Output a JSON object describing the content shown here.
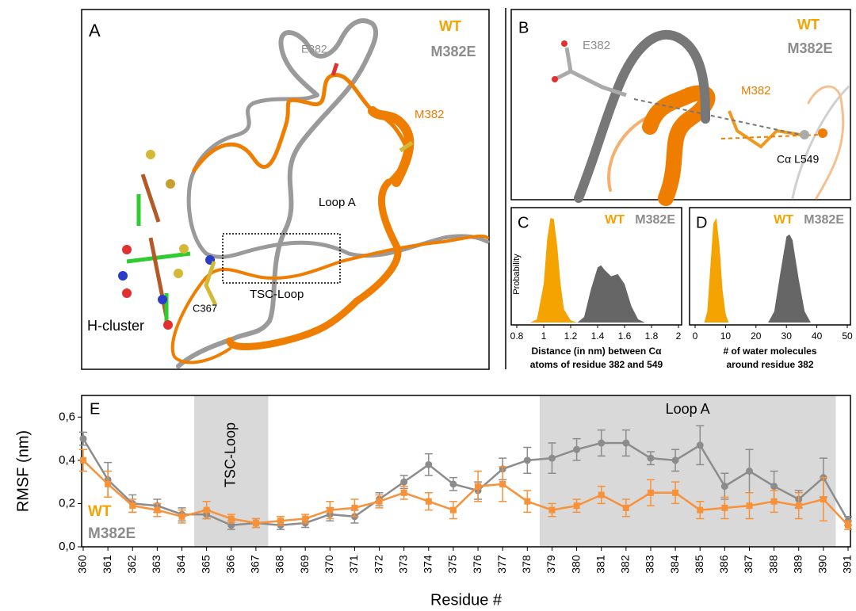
{
  "panels": {
    "A": {
      "label": "A",
      "legend": [
        "WT",
        "M382E"
      ],
      "labels": [
        "E382",
        "M382",
        "Loop A",
        "TSC-Loop",
        "C367",
        "H-cluster"
      ]
    },
    "B": {
      "label": "B",
      "legend": [
        "WT",
        "M382E"
      ],
      "labels": [
        "E382",
        "M382",
        "Cα L549"
      ]
    }
  },
  "chart_data": [
    {
      "type": "area",
      "panel_label": "C",
      "ylabel": "Probability",
      "xlabel": [
        "Distance (in nm) between Cα",
        "atoms of residue 382 and 549"
      ],
      "xlim": [
        0.8,
        2
      ],
      "xticks": [
        0.8,
        1,
        1.2,
        1.4,
        1.6,
        1.8,
        2
      ],
      "ylim": [
        0,
        1
      ],
      "series": [
        {
          "name": "WT",
          "color": "#f5a300",
          "x": [
            0.9,
            0.95,
            1.0,
            1.025,
            1.05,
            1.075,
            1.1,
            1.125,
            1.15,
            1.2,
            1.25
          ],
          "values": [
            0,
            0.03,
            0.35,
            0.75,
            0.95,
            0.94,
            0.7,
            0.35,
            0.12,
            0.02,
            0
          ]
        },
        {
          "name": "M382E",
          "color": "#666666",
          "x": [
            1.25,
            1.3,
            1.35,
            1.4,
            1.425,
            1.45,
            1.5,
            1.55,
            1.6,
            1.65,
            1.7,
            1.75
          ],
          "values": [
            0,
            0.05,
            0.3,
            0.5,
            0.52,
            0.48,
            0.42,
            0.44,
            0.35,
            0.15,
            0.03,
            0
          ]
        }
      ]
    },
    {
      "type": "area",
      "panel_label": "D",
      "xlabel": [
        "# of water molecules",
        "around residue 382"
      ],
      "xlim": [
        0,
        50
      ],
      "xticks": [
        0,
        10,
        20,
        30,
        40,
        50
      ],
      "ylim": [
        0,
        1
      ],
      "series": [
        {
          "name": "WT",
          "color": "#f5a300",
          "x": [
            3,
            4,
            5,
            6,
            7,
            8,
            9,
            10,
            11
          ],
          "values": [
            0,
            0.1,
            0.5,
            0.9,
            0.95,
            0.7,
            0.3,
            0.08,
            0
          ]
        },
        {
          "name": "M382E",
          "color": "#666666",
          "x": [
            24,
            26,
            28,
            30,
            31,
            32,
            34,
            36,
            38
          ],
          "values": [
            0,
            0.1,
            0.45,
            0.78,
            0.8,
            0.75,
            0.4,
            0.1,
            0
          ]
        }
      ]
    },
    {
      "type": "line",
      "panel_label": "E",
      "ylabel": "RMSF (nm)",
      "xlabel": "Residue #",
      "x": [
        360,
        361,
        362,
        363,
        364,
        365,
        366,
        367,
        368,
        369,
        370,
        371,
        372,
        373,
        374,
        375,
        376,
        377,
        378,
        379,
        380,
        381,
        382,
        383,
        384,
        385,
        386,
        387,
        388,
        389,
        390,
        391
      ],
      "xlim": [
        360,
        391
      ],
      "xticks": [
        360,
        361,
        362,
        363,
        364,
        365,
        366,
        367,
        368,
        369,
        370,
        371,
        372,
        373,
        374,
        375,
        376,
        377,
        378,
        379,
        380,
        381,
        382,
        383,
        384,
        385,
        386,
        387,
        388,
        389,
        390,
        391
      ],
      "ylim": [
        0,
        0.7
      ],
      "yticks": [
        {
          "value": 0,
          "label": "0,0"
        },
        {
          "value": 0.2,
          "label": "0,2"
        },
        {
          "value": 0.4,
          "label": "0,4"
        },
        {
          "value": 0.6,
          "label": "0,6"
        }
      ],
      "regions": [
        {
          "label": "TSC-Loop",
          "range": [
            364.5,
            367.5
          ]
        },
        {
          "label": "Loop A",
          "range": [
            378.5,
            390.5
          ]
        }
      ],
      "series": [
        {
          "name": "M382E",
          "color": "#8c8c8c",
          "marker": "circle",
          "values": [
            0.5,
            0.31,
            0.2,
            0.19,
            0.15,
            0.15,
            0.1,
            0.11,
            0.1,
            0.11,
            0.15,
            0.14,
            0.22,
            0.3,
            0.38,
            0.29,
            0.26,
            0.36,
            0.4,
            0.41,
            0.45,
            0.48,
            0.48,
            0.41,
            0.4,
            0.47,
            0.28,
            0.35,
            0.28,
            0.22,
            0.32,
            0.12
          ],
          "errors": [
            0.03,
            0.08,
            0.04,
            0.03,
            0.03,
            0.02,
            0.02,
            0.02,
            0.02,
            0.02,
            0.03,
            0.03,
            0.03,
            0.03,
            0.05,
            0.03,
            0.04,
            0.05,
            0.06,
            0.07,
            0.05,
            0.06,
            0.06,
            0.03,
            0.05,
            0.09,
            0.06,
            0.1,
            0.07,
            0.04,
            0.09,
            0.02
          ]
        },
        {
          "name": "WT",
          "color": "#f7923a",
          "marker": "square",
          "values": [
            0.4,
            0.29,
            0.19,
            0.17,
            0.14,
            0.17,
            0.13,
            0.11,
            0.12,
            0.13,
            0.17,
            0.18,
            0.21,
            0.25,
            0.21,
            0.17,
            0.28,
            0.29,
            0.21,
            0.17,
            0.19,
            0.24,
            0.18,
            0.25,
            0.25,
            0.17,
            0.18,
            0.19,
            0.21,
            0.19,
            0.22,
            0.1
          ],
          "errors": [
            0.05,
            0.06,
            0.03,
            0.03,
            0.03,
            0.04,
            0.02,
            0.02,
            0.02,
            0.02,
            0.04,
            0.04,
            0.03,
            0.03,
            0.04,
            0.04,
            0.07,
            0.08,
            0.05,
            0.03,
            0.03,
            0.04,
            0.04,
            0.06,
            0.05,
            0.04,
            0.05,
            0.06,
            0.05,
            0.06,
            0.1,
            0.02
          ]
        }
      ]
    }
  ]
}
